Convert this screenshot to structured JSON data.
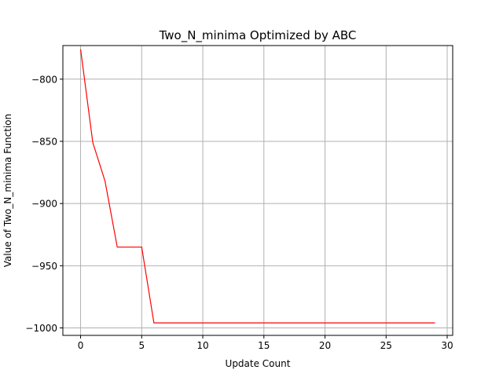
{
  "chart_data": {
    "type": "line",
    "title": "Two_N_minima Optimized by ABC",
    "xlabel": "Update Count",
    "ylabel": "Value of Two_N_minima Function",
    "xlim": [
      -1.45,
      30.45
    ],
    "ylim": [
      -1006,
      -773
    ],
    "xticks": [
      0,
      5,
      10,
      15,
      20,
      25,
      30
    ],
    "yticks": [
      -800,
      -850,
      -900,
      -950,
      -1000
    ],
    "xtick_labels": [
      "0",
      "5",
      "10",
      "15",
      "20",
      "25",
      "30"
    ],
    "ytick_labels": [
      "−800",
      "−850",
      "−900",
      "−950",
      "−1000"
    ],
    "grid": true,
    "series": [
      {
        "color": "#ff0000",
        "x": [
          0,
          1,
          2,
          3,
          4,
          5,
          6,
          7,
          8,
          9,
          10,
          11,
          12,
          13,
          14,
          15,
          16,
          17,
          18,
          19,
          20,
          21,
          22,
          23,
          24,
          25,
          26,
          27,
          28,
          29
        ],
        "y": [
          -776,
          -851,
          -882,
          -935,
          -935,
          -935,
          -996,
          -996,
          -996,
          -996,
          -996,
          -996,
          -996,
          -996,
          -996,
          -996,
          -996,
          -996,
          -996,
          -996,
          -996,
          -996,
          -996,
          -996,
          -996,
          -996,
          -996,
          -996,
          -996,
          -996
        ]
      }
    ]
  }
}
